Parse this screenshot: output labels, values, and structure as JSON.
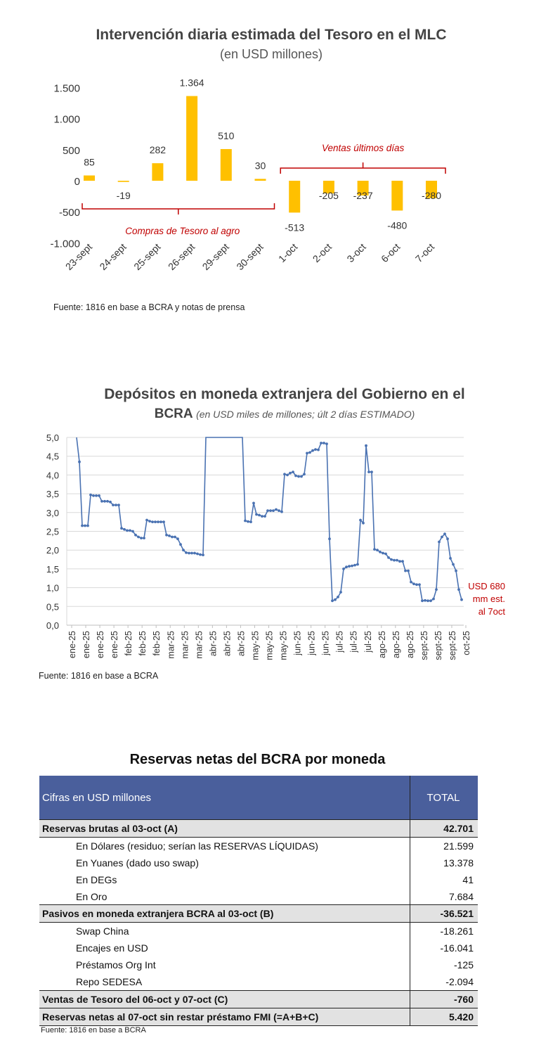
{
  "chart_data": [
    {
      "type": "bar",
      "title": "Intervención diaria estimada del Tesoro en el MLC",
      "subtitle": "(en USD millones)",
      "categories": [
        "23-sept",
        "24-sept",
        "25-sept",
        "26-sept",
        "29-sept",
        "30-sept",
        "1-oct",
        "2-oct",
        "3-oct",
        "6-oct",
        "7-oct"
      ],
      "values": [
        85,
        -19,
        282,
        1364,
        510,
        30,
        -513,
        -205,
        -237,
        -480,
        -280
      ],
      "value_labels": [
        "85",
        "-19",
        "282",
        "1.364",
        "510",
        "30",
        "-513",
        "-205",
        "-237",
        "-480",
        "-280"
      ],
      "yticks": [
        1500,
        1000,
        500,
        0,
        -500,
        -1000
      ],
      "ytick_labels": [
        "1.500",
        "1.000",
        "500",
        "0",
        "-500",
        "-1.000"
      ],
      "ylim": [
        -1000,
        1500
      ],
      "bar_color": "#ffc000",
      "annotations": [
        {
          "text": "Ventas últimos días",
          "range": [
            "1-oct",
            "7-oct"
          ],
          "color": "#c00000"
        },
        {
          "text": "Compras de Tesoro al agro",
          "range": [
            "23-sept",
            "30-sept"
          ],
          "color": "#c00000"
        }
      ],
      "source": "Fuente: 1816 en base a BCRA y notas de prensa"
    },
    {
      "type": "line",
      "title": "Depósitos en moneda extranjera del Gobierno en el",
      "title_line2": "BCRA",
      "subtitle": "(en USD miles de millones; últ 2 días ESTIMADO)",
      "yticks": [
        0,
        0.5,
        1.0,
        1.5,
        2.0,
        2.5,
        3.0,
        3.5,
        4.0,
        4.5,
        5.0
      ],
      "ytick_labels": [
        "0,0",
        "0,5",
        "1,0",
        "1,5",
        "2,0",
        "2,5",
        "3,0",
        "3,5",
        "4,0",
        "4,5",
        "5,0"
      ],
      "ylim": [
        0,
        5
      ],
      "xtick_labels": [
        "ene-25",
        "ene-25",
        "ene-25",
        "ene-25",
        "feb-25",
        "feb-25",
        "feb-25",
        "mar-25",
        "mar-25",
        "mar-25",
        "abr-25",
        "abr-25",
        "abr-25",
        "may-25",
        "may-25",
        "may-25",
        "jun-25",
        "jun-25",
        "jun-25",
        "jul-25",
        "jul-25",
        "jul-25",
        "ago-25",
        "ago-25",
        "ago-25",
        "sept-25",
        "sept-25",
        "sept-25",
        "oct-25"
      ],
      "series": [
        {
          "name": "Depósitos",
          "color": "#4a72b2",
          "values": [
            5.0,
            4.35,
            2.65,
            2.65,
            2.65,
            3.47,
            3.45,
            3.45,
            3.45,
            3.3,
            3.3,
            3.3,
            3.28,
            3.2,
            3.2,
            3.2,
            2.58,
            2.55,
            2.52,
            2.52,
            2.5,
            2.4,
            2.35,
            2.32,
            2.32,
            2.8,
            2.77,
            2.75,
            2.75,
            2.75,
            2.75,
            2.75,
            2.4,
            2.38,
            2.35,
            2.35,
            2.3,
            2.15,
            2.0,
            1.93,
            1.92,
            1.92,
            1.92,
            1.9,
            1.88,
            1.87,
            5.0,
            5.0,
            5.0,
            5.0,
            5.0,
            5.0,
            5.0,
            5.0,
            5.0,
            5.0,
            5.0,
            5.0,
            5.0,
            5.0,
            2.78,
            2.76,
            2.75,
            3.25,
            2.95,
            2.93,
            2.9,
            2.9,
            3.05,
            3.05,
            3.05,
            3.08,
            3.05,
            3.02,
            4.02,
            4.0,
            4.05,
            4.08,
            3.98,
            3.96,
            3.96,
            4.02,
            4.58,
            4.6,
            4.65,
            4.68,
            4.67,
            4.85,
            4.85,
            4.83,
            2.3,
            0.65,
            0.68,
            0.75,
            0.88,
            1.5,
            1.55,
            1.57,
            1.58,
            1.6,
            1.62,
            2.8,
            2.72,
            4.78,
            4.08,
            4.08,
            2.02,
            2.0,
            1.95,
            1.92,
            1.9,
            1.8,
            1.75,
            1.73,
            1.73,
            1.7,
            1.7,
            1.45,
            1.45,
            1.15,
            1.1,
            1.08,
            1.08,
            0.65,
            0.66,
            0.65,
            0.65,
            0.7,
            0.95,
            2.22,
            2.35,
            2.43,
            2.3,
            1.78,
            1.62,
            1.45,
            0.95,
            0.68
          ]
        }
      ],
      "annotation": {
        "lines": [
          "USD 680",
          "mm est.",
          "al 7oct"
        ],
        "color": "#c00000"
      },
      "source": "Fuente: 1816 en base a BCRA"
    }
  ],
  "table": {
    "title": "Reservas netas del BCRA por moneda",
    "header": {
      "label": "Cifras en USD millones",
      "total": "TOTAL"
    },
    "rows": [
      {
        "label": "Reservas brutas al 03-oct (A)",
        "value": "42.701",
        "bold": true
      },
      {
        "label": "En Dólares (residuo; serían las RESERVAS LÍQUIDAS)",
        "value": "21.599",
        "bold": false
      },
      {
        "label": "En Yuanes (dado uso swap)",
        "value": "13.378",
        "bold": false
      },
      {
        "label": "En DEGs",
        "value": "41",
        "bold": false
      },
      {
        "label": "En Oro",
        "value": "7.684",
        "bold": false
      },
      {
        "label": "Pasivos en moneda extranjera BCRA al 03-oct (B)",
        "value": "-36.521",
        "bold": true
      },
      {
        "label": "Swap China",
        "value": "-18.261",
        "bold": false
      },
      {
        "label": "Encajes en USD",
        "value": "-16.041",
        "bold": false
      },
      {
        "label": "Préstamos Org Int",
        "value": "-125",
        "bold": false
      },
      {
        "label": "Repo SEDESA",
        "value": "-2.094",
        "bold": false
      },
      {
        "label": "Ventas de Tesoro del 06-oct y 07-oct (C)",
        "value": "-760",
        "bold": true
      },
      {
        "label": "Reservas netas al 07-oct sin restar préstamo FMI (=A+B+C)",
        "value": "5.420",
        "bold": true
      }
    ],
    "source": "Fuente: 1816 en base a BCRA"
  }
}
